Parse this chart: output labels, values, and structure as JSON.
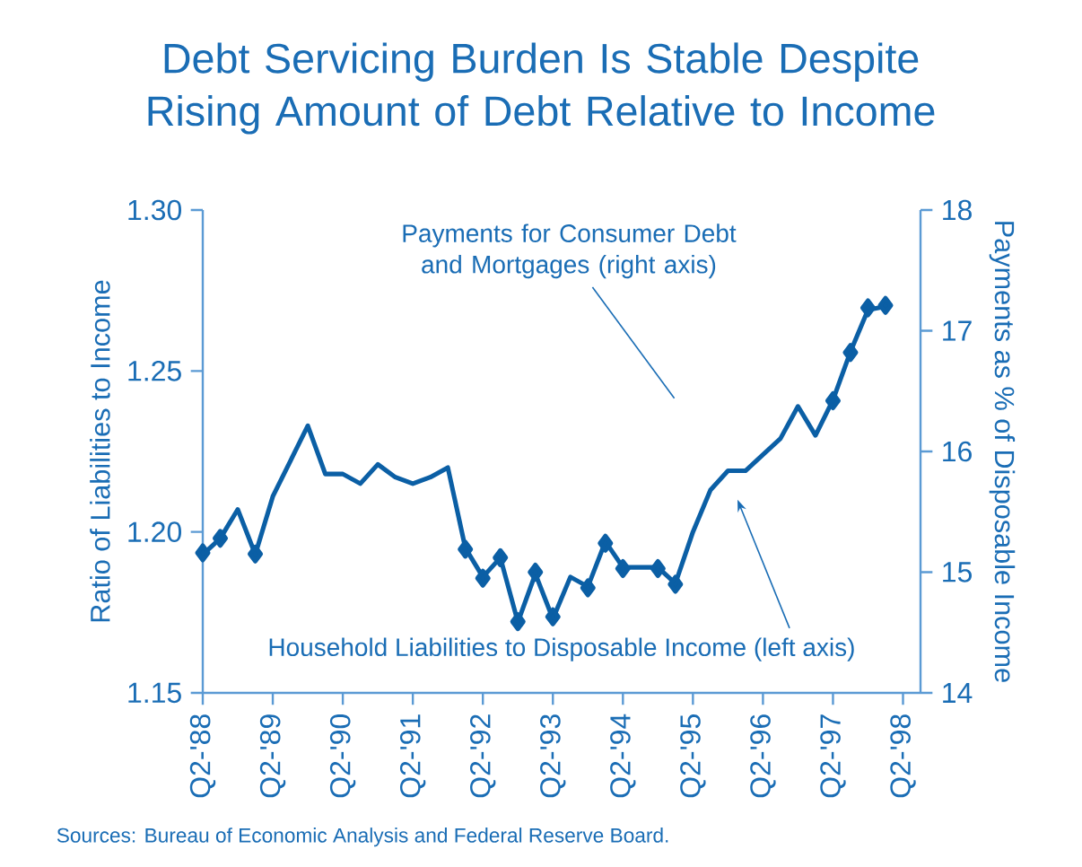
{
  "chart_data": {
    "type": "line",
    "title": "Debt Servicing Burden Is Stable Despite Rising Amount of Debt Relative to Income",
    "ylabel": "Ratio of Liabilities to Income",
    "y2label": "Payments as % of Disposable Income",
    "annotations": [
      "Payments for Consumer Debt and Mortgages (right axis)",
      "Household Liabilities to Disposable Income (left axis)",
      "Sources: Bureau of Economic Analysis and Federal Reserve Board."
    ],
    "categories": [
      "Q2-'88",
      null,
      null,
      null,
      "Q2-'89",
      null,
      null,
      null,
      "Q2-'90",
      null,
      null,
      null,
      "Q2-'91",
      null,
      null,
      null,
      "Q2-'92",
      null,
      null,
      null,
      "Q2-'93",
      null,
      null,
      null,
      "Q2-'94",
      null,
      null,
      null,
      "Q2-'95",
      null,
      null,
      null,
      "Q2-'96",
      null,
      null,
      null,
      "Q2-'97",
      null,
      null,
      null,
      "Q2-'98"
    ],
    "series": [
      {
        "color": "#0b5fa5",
        "values": [
          1.193,
          1.198,
          1.207,
          1.193,
          1.211,
          1.222,
          1.233,
          1.218,
          1.218,
          1.215,
          1.221,
          1.217,
          1.215,
          1.217,
          1.22,
          1.195,
          1.186,
          1.192,
          1.172,
          1.187,
          1.173,
          1.186,
          1.183,
          1.197,
          1.189,
          1.189,
          1.189,
          1.184,
          1.2,
          1.213,
          1.219,
          1.219,
          1.224,
          1.229,
          1.239,
          1.23,
          1.241,
          1.256,
          1.269,
          1.27,
          null
        ]
      },
      {
        "type": "scatter",
        "axis": "y2",
        "marker": "diamond",
        "color": "#0b5fa5",
        "values": [
          15.16,
          15.28,
          null,
          15.15,
          null,
          null,
          null,
          null,
          null,
          null,
          null,
          null,
          null,
          null,
          null,
          15.19,
          14.95,
          15.12,
          14.59,
          15.0,
          14.63,
          null,
          14.87,
          15.24,
          15.03,
          null,
          15.03,
          14.9,
          null,
          null,
          null,
          null,
          null,
          null,
          null,
          null,
          16.42,
          16.82,
          17.19,
          17.21,
          null
        ]
      }
    ],
    "ylim": [
      1.15,
      1.3
    ],
    "yticks": [
      1.15,
      {
        "value": 1.2,
        "label": "1.20"
      },
      1.25,
      {
        "value": 1.3,
        "label": "1.30"
      }
    ],
    "y2lim": [
      14,
      18
    ],
    "y2ticks": [
      14,
      15,
      16,
      17,
      18
    ]
  }
}
